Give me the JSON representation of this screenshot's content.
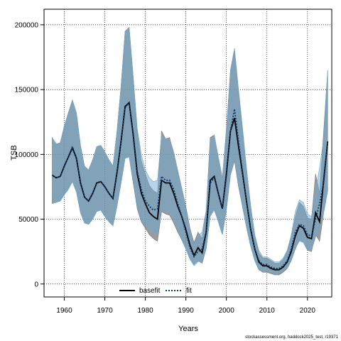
{
  "chart_data": {
    "type": "line",
    "xlabel": "Years",
    "ylabel": "TSB",
    "xlim": [
      1955,
      2026
    ],
    "ylim": [
      -10000,
      212000
    ],
    "xticks": [
      "1960",
      "1970",
      "1980",
      "1990",
      "2000",
      "2010",
      "2020"
    ],
    "yticks": [
      "0",
      "50000",
      "100000",
      "150000",
      "200000"
    ],
    "grid": true,
    "legend_position": "bottom-center",
    "colors": {
      "basefit_band": "#7a7a7a",
      "fit_band": "#6aa9d6",
      "basefit_line": "#000000",
      "fit_line": "#0a3a6a"
    },
    "series": [
      {
        "name": "basefit",
        "style": "solid",
        "x": [
          1957,
          1958,
          1959,
          1960,
          1961,
          1962,
          1963,
          1964,
          1965,
          1966,
          1967,
          1968,
          1969,
          1970,
          1971,
          1972,
          1973,
          1974,
          1975,
          1976,
          1977,
          1978,
          1979,
          1980,
          1981,
          1982,
          1983,
          1984,
          1985,
          1986,
          1987,
          1988,
          1989,
          1990,
          1991,
          1992,
          1993,
          1994,
          1995,
          1996,
          1997,
          1998,
          1999,
          2000,
          2001,
          2002,
          2003,
          2004,
          2005,
          2006,
          2007,
          2008,
          2009,
          2010,
          2011,
          2012,
          2013,
          2014,
          2015,
          2016,
          2017,
          2018,
          2019,
          2020,
          2021,
          2022,
          2023,
          2024,
          2025
        ],
        "y": [
          84000,
          82000,
          83000,
          91000,
          98000,
          105000,
          97000,
          78000,
          67000,
          64000,
          70000,
          78000,
          79000,
          75000,
          70000,
          66000,
          86000,
          110000,
          137000,
          140000,
          115000,
          85000,
          70000,
          62000,
          55000,
          52000,
          50000,
          80000,
          78000,
          78000,
          70000,
          60000,
          52000,
          42000,
          30000,
          22000,
          28000,
          24000,
          40000,
          80000,
          83000,
          70000,
          58000,
          85000,
          118000,
          128000,
          106000,
          85000,
          63000,
          42000,
          27000,
          17000,
          14000,
          14000,
          12000,
          11000,
          11000,
          13000,
          17000,
          25000,
          37000,
          45000,
          43000,
          36000,
          35000,
          55000,
          48000,
          80000,
          110000
        ],
        "lower": [
          62000,
          63000,
          64000,
          69000,
          73000,
          79000,
          71000,
          55000,
          47000,
          46000,
          50000,
          56000,
          57000,
          52000,
          48000,
          45000,
          60000,
          78000,
          97000,
          98000,
          78000,
          58000,
          48000,
          43000,
          38000,
          35000,
          33000,
          56000,
          54000,
          53000,
          47000,
          40000,
          34000,
          27000,
          20000,
          15000,
          18000,
          16000,
          27000,
          53000,
          58000,
          48000,
          38000,
          58000,
          84000,
          95000,
          75000,
          59000,
          43000,
          29000,
          18000,
          11000,
          9000,
          9000,
          8000,
          7000,
          7000,
          9000,
          12000,
          18000,
          27000,
          34000,
          32000,
          26000,
          25000,
          38000,
          33000,
          55000,
          72000
        ],
        "upper": [
          113000,
          108000,
          109000,
          122000,
          132000,
          142000,
          132000,
          107000,
          91000,
          88000,
          96000,
          106000,
          107000,
          102000,
          96000,
          91000,
          118000,
          153000,
          195000,
          198000,
          160000,
          118000,
          95000,
          85000,
          76000,
          72000,
          70000,
          118000,
          112000,
          113000,
          100000,
          86000,
          74000,
          60000,
          43000,
          32000,
          40000,
          35000,
          57000,
          113000,
          115000,
          98000,
          82000,
          120000,
          165000,
          180000,
          148000,
          118000,
          88000,
          60000,
          38000,
          24000,
          20000,
          20000,
          18000,
          16000,
          16000,
          19000,
          25000,
          36000,
          52000,
          63000,
          60000,
          51000,
          50000,
          85000,
          70000,
          118000,
          165000
        ]
      },
      {
        "name": "fit",
        "style": "dotted",
        "x": [
          1957,
          1958,
          1959,
          1960,
          1961,
          1962,
          1963,
          1964,
          1965,
          1966,
          1967,
          1968,
          1969,
          1970,
          1971,
          1972,
          1973,
          1974,
          1975,
          1976,
          1977,
          1978,
          1979,
          1980,
          1981,
          1982,
          1983,
          1984,
          1985,
          1986,
          1987,
          1988,
          1989,
          1990,
          1991,
          1992,
          1993,
          1994,
          1995,
          1996,
          1997,
          1998,
          1999,
          2000,
          2001,
          2002,
          2003,
          2004,
          2005,
          2006,
          2007,
          2008,
          2009,
          2010,
          2011,
          2012,
          2013,
          2014,
          2015,
          2016,
          2017,
          2018,
          2019,
          2020,
          2021,
          2022,
          2023,
          2024,
          2025
        ],
        "y": [
          84000,
          82000,
          83000,
          91000,
          98000,
          106000,
          97000,
          78000,
          67000,
          64000,
          70000,
          78000,
          79000,
          75000,
          70000,
          66000,
          86000,
          110000,
          136000,
          140000,
          116000,
          87000,
          73000,
          64000,
          60000,
          57000,
          58000,
          83000,
          80000,
          80000,
          73000,
          62000,
          52000,
          40000,
          28000,
          21000,
          25000,
          27000,
          40000,
          78000,
          82000,
          70000,
          58000,
          83000,
          118000,
          135000,
          110000,
          86000,
          63000,
          42000,
          27000,
          18000,
          15000,
          15000,
          13000,
          12000,
          12000,
          14000,
          18000,
          27000,
          40000,
          46000,
          45000,
          38000,
          37000,
          50000,
          62000,
          78000,
          110000
        ],
        "lower": [
          62000,
          63000,
          64000,
          69000,
          73000,
          79000,
          71000,
          55000,
          47000,
          46000,
          50000,
          56000,
          57000,
          52000,
          48000,
          45000,
          60000,
          78000,
          97000,
          98000,
          80000,
          60000,
          50000,
          45000,
          42000,
          40000,
          40000,
          58000,
          56000,
          55000,
          50000,
          42000,
          35000,
          27000,
          19000,
          14000,
          17000,
          18000,
          27000,
          52000,
          57000,
          48000,
          38000,
          57000,
          84000,
          98000,
          77000,
          59000,
          43000,
          29000,
          18000,
          12000,
          10000,
          10000,
          9000,
          8000,
          8000,
          10000,
          13000,
          19000,
          28000,
          33000,
          32000,
          27000,
          26000,
          36000,
          44000,
          55000,
          72000
        ],
        "upper": [
          113000,
          108000,
          109000,
          122000,
          132000,
          142000,
          132000,
          107000,
          91000,
          88000,
          96000,
          106000,
          107000,
          102000,
          96000,
          91000,
          118000,
          153000,
          195000,
          198000,
          160000,
          120000,
          100000,
          88000,
          82000,
          79000,
          80000,
          115000,
          112000,
          112000,
          102000,
          88000,
          74000,
          58000,
          41000,
          31000,
          37000,
          40000,
          57000,
          110000,
          115000,
          98000,
          82000,
          118000,
          165000,
          182000,
          150000,
          120000,
          88000,
          60000,
          38000,
          26000,
          21000,
          21000,
          19000,
          17000,
          17000,
          20000,
          26000,
          38000,
          56000,
          65000,
          63000,
          54000,
          52000,
          72000,
          90000,
          112000,
          165000
        ]
      }
    ]
  },
  "source_note": "stockassessment.org, haddock2025_test, r19371"
}
